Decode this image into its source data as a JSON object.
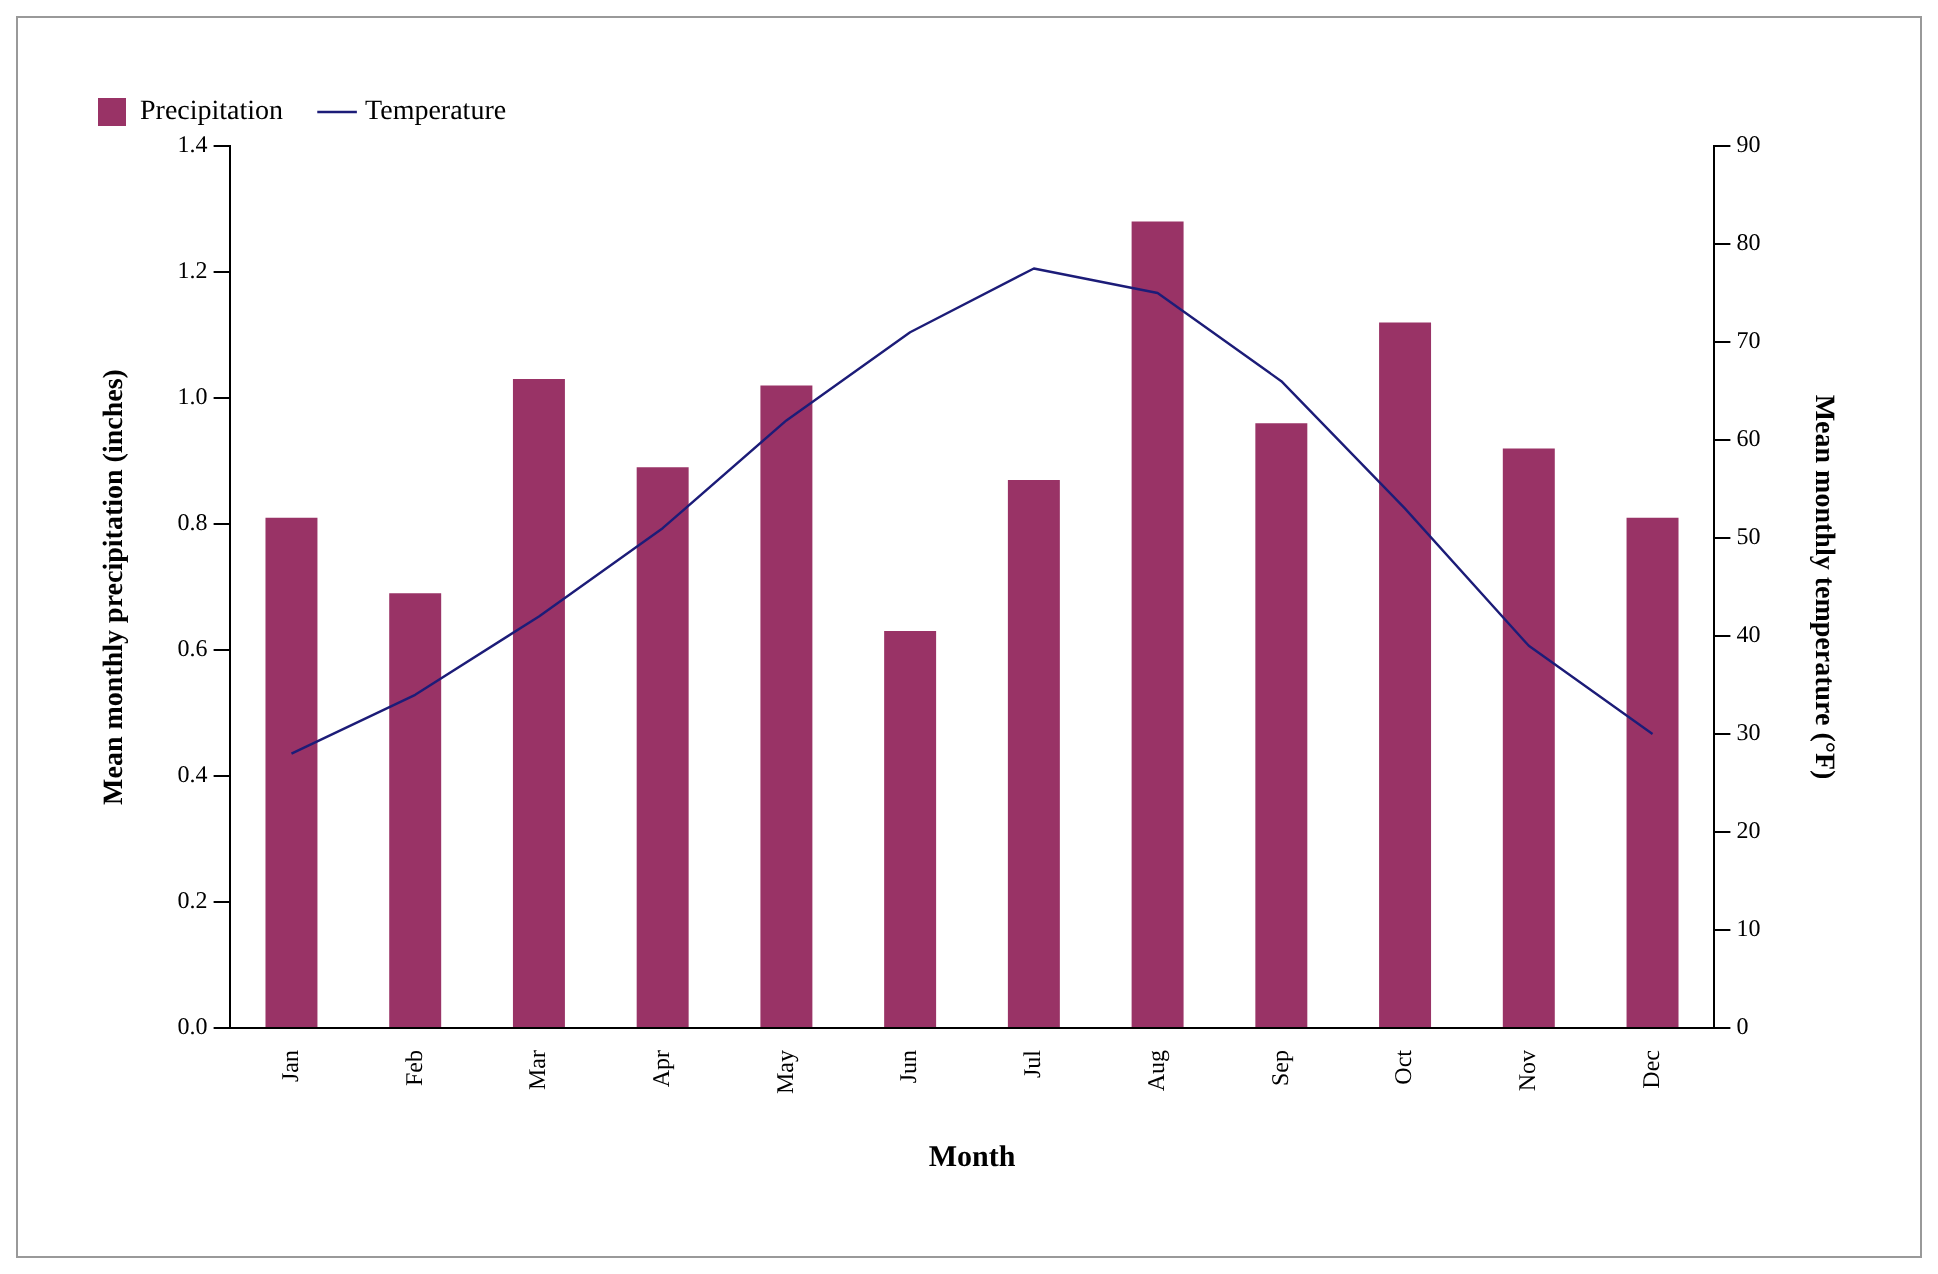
{
  "chart_data": {
    "type": "bar",
    "xlabel": "Month",
    "ylabel": "Mean monthly precipitation (inches)",
    "y2label": "Mean monthly temperature (°F)",
    "categories": [
      "Jan",
      "Feb",
      "Mar",
      "Apr",
      "May",
      "Jun",
      "Jul",
      "Aug",
      "Sep",
      "Oct",
      "Nov",
      "Dec"
    ],
    "series": [
      {
        "name": "Precipitation",
        "color": "#993366",
        "values": [
          0.81,
          0.69,
          1.03,
          0.89,
          1.02,
          0.63,
          0.87,
          1.28,
          0.96,
          1.12,
          0.92,
          0.81
        ]
      },
      {
        "name": "Temperature",
        "type": "line",
        "axis": "y2",
        "color": "#1c1c78",
        "values": [
          28,
          34,
          42,
          51,
          62,
          71,
          77.5,
          75,
          66,
          53,
          39,
          30
        ]
      }
    ],
    "ylim": [
      0,
      1.4
    ],
    "yticks": [
      {
        "value": 0,
        "label": "0.0"
      },
      {
        "value": 0.2,
        "label": "0.2"
      },
      {
        "value": 0.4,
        "label": "0.4"
      },
      {
        "value": 0.6,
        "label": "0.6"
      },
      {
        "value": 0.8,
        "label": "0.8"
      },
      {
        "value": 1,
        "label": "1.0"
      },
      {
        "value": 1.2,
        "label": "1.2"
      },
      {
        "value": 1.4,
        "label": "1.4"
      }
    ],
    "y2lim": [
      0,
      90
    ],
    "y2ticks": [
      0,
      10,
      20,
      30,
      40,
      50,
      60,
      70,
      80,
      90
    ],
    "grid": false,
    "legend": "top",
    "marker": "none",
    "line_style": "solid"
  }
}
